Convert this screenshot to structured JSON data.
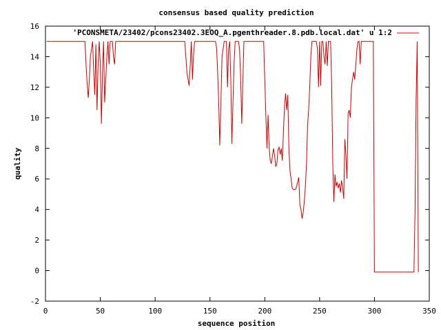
{
  "chart_data": {
    "type": "line",
    "title": "consensus based quality prediction",
    "xlabel": "sequence position",
    "ylabel": "quality",
    "xlim": [
      0,
      350
    ],
    "ylim": [
      -2,
      16
    ],
    "x_ticks": [
      0,
      50,
      100,
      150,
      200,
      250,
      300,
      350
    ],
    "y_ticks": [
      -2,
      0,
      2,
      4,
      6,
      8,
      10,
      12,
      14,
      16
    ],
    "grid": false,
    "legend_position": "top-right",
    "series": [
      {
        "name": "'PCONSMETA/23402/pcons23402.3EOQ_A.pgenthreader.8.pdb.local.dat' u 1:2",
        "color": "#cc0000",
        "points": [
          [
            1,
            15
          ],
          [
            36,
            15
          ],
          [
            37,
            13.5
          ],
          [
            38,
            12.2
          ],
          [
            39,
            11.3
          ],
          [
            40,
            12.5
          ],
          [
            41,
            14
          ],
          [
            42,
            14.5
          ],
          [
            43,
            15
          ],
          [
            44,
            13
          ],
          [
            45,
            11.5
          ],
          [
            46,
            14.8
          ],
          [
            47,
            10.5
          ],
          [
            48,
            13.5
          ],
          [
            49,
            15
          ],
          [
            50,
            13.5
          ],
          [
            51,
            9.6
          ],
          [
            52,
            13
          ],
          [
            53,
            15
          ],
          [
            54,
            11
          ],
          [
            55,
            12.5
          ],
          [
            56,
            14
          ],
          [
            57,
            15
          ],
          [
            58,
            13.5
          ],
          [
            59,
            15
          ],
          [
            60,
            15
          ],
          [
            61,
            15
          ],
          [
            62,
            14
          ],
          [
            63,
            13.5
          ],
          [
            64,
            15
          ],
          [
            127,
            15
          ],
          [
            128,
            14
          ],
          [
            129,
            13
          ],
          [
            130,
            12.5
          ],
          [
            131,
            12.1
          ],
          [
            132,
            13.5
          ],
          [
            133,
            15
          ],
          [
            134,
            12.5
          ],
          [
            135,
            14
          ],
          [
            136,
            15
          ],
          [
            155,
            15
          ],
          [
            156,
            14.6
          ],
          [
            157,
            13
          ],
          [
            158,
            11
          ],
          [
            159,
            8.2
          ],
          [
            160,
            11
          ],
          [
            161,
            14
          ],
          [
            162,
            14.5
          ],
          [
            163,
            15
          ],
          [
            165,
            15
          ],
          [
            166,
            12
          ],
          [
            167,
            14.5
          ],
          [
            168,
            15
          ],
          [
            169,
            12.5
          ],
          [
            170,
            8.3
          ],
          [
            171,
            11
          ],
          [
            172,
            13.5
          ],
          [
            173,
            15
          ],
          [
            176,
            15
          ],
          [
            177,
            14.5
          ],
          [
            178,
            12.5
          ],
          [
            179,
            9.6
          ],
          [
            180,
            12.5
          ],
          [
            181,
            15
          ],
          [
            199,
            15
          ],
          [
            200,
            12.5
          ],
          [
            201,
            10
          ],
          [
            202,
            8
          ],
          [
            203,
            10.2
          ],
          [
            204,
            8
          ],
          [
            205,
            7.2
          ],
          [
            206,
            7
          ],
          [
            207,
            7.5
          ],
          [
            208,
            8
          ],
          [
            209,
            7.5
          ],
          [
            210,
            6.8
          ],
          [
            211,
            7
          ],
          [
            212,
            7.9
          ],
          [
            213,
            8.1
          ],
          [
            214,
            7.6
          ],
          [
            215,
            8
          ],
          [
            216,
            7.2
          ],
          [
            217,
            9
          ],
          [
            218,
            10.8
          ],
          [
            219,
            11.6
          ],
          [
            220,
            10.5
          ],
          [
            221,
            11.5
          ],
          [
            222,
            8
          ],
          [
            223,
            6.5
          ],
          [
            224,
            6
          ],
          [
            225,
            5.4
          ],
          [
            226,
            5.3
          ],
          [
            228,
            5.3
          ],
          [
            229,
            5.5
          ],
          [
            230,
            5.8
          ],
          [
            231,
            6.1
          ],
          [
            232,
            4.3
          ],
          [
            233,
            4
          ],
          [
            234,
            3.4
          ],
          [
            235,
            3.8
          ],
          [
            236,
            4.5
          ],
          [
            237,
            5.5
          ],
          [
            238,
            7
          ],
          [
            239,
            9.5
          ],
          [
            240,
            10.5
          ],
          [
            241,
            12
          ],
          [
            242,
            14
          ],
          [
            243,
            15
          ],
          [
            247,
            15
          ],
          [
            248,
            14.5
          ],
          [
            249,
            12
          ],
          [
            250,
            15
          ],
          [
            251,
            12.1
          ],
          [
            252,
            15
          ],
          [
            253,
            15
          ],
          [
            254,
            14
          ],
          [
            255,
            13.5
          ],
          [
            256,
            15
          ],
          [
            257,
            13.4
          ],
          [
            258,
            15
          ],
          [
            260,
            15
          ],
          [
            261,
            12
          ],
          [
            262,
            7
          ],
          [
            263,
            4.5
          ],
          [
            264,
            6.3
          ],
          [
            265,
            5.5
          ],
          [
            266,
            5.8
          ],
          [
            267,
            5.4
          ],
          [
            268,
            5.7
          ],
          [
            269,
            5.1
          ],
          [
            270,
            5.9
          ],
          [
            271,
            5.4
          ],
          [
            272,
            4.7
          ],
          [
            273,
            8.6
          ],
          [
            274,
            7.5
          ],
          [
            275,
            6
          ],
          [
            276,
            10.3
          ],
          [
            277,
            10.5
          ],
          [
            278,
            10
          ],
          [
            279,
            12
          ],
          [
            280,
            12.5
          ],
          [
            281,
            13
          ],
          [
            282,
            12.5
          ],
          [
            283,
            13.5
          ],
          [
            284,
            14.5
          ],
          [
            285,
            15
          ],
          [
            286,
            15
          ],
          [
            287,
            13.5
          ],
          [
            288,
            15
          ],
          [
            299,
            15
          ],
          [
            300,
            -0.1
          ],
          [
            336,
            -0.1
          ],
          [
            337,
            3.8
          ],
          [
            338,
            11.2
          ],
          [
            339,
            15
          ],
          [
            339.5,
            7.5
          ],
          [
            340,
            -0.1
          ]
        ]
      }
    ]
  }
}
